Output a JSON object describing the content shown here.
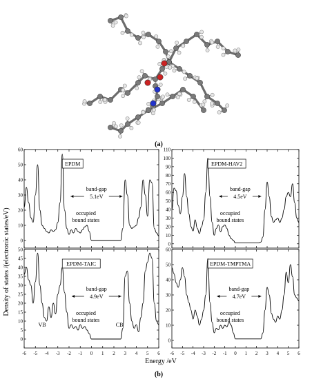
{
  "panel_a": {
    "caption": "(a)"
  },
  "panel_b": {
    "caption": "(b)"
  },
  "shared_axes": {
    "ylabel": "Density of states /(electronic states/eV)",
    "xlabel": "Energy /eV",
    "xticks": [
      -6,
      -5,
      -4,
      -3,
      -2,
      -1,
      0,
      1,
      2,
      3,
      4,
      5,
      6
    ]
  },
  "chart_data": [
    {
      "type": "line",
      "title": "EPDM",
      "xlim": [
        -6,
        6
      ],
      "ylim": [
        -5,
        60
      ],
      "yticks": [
        0,
        10,
        20,
        30,
        40,
        50,
        60
      ],
      "annotations": [
        "band-gap",
        "5.1eV",
        "occupied",
        "bound states"
      ],
      "gap": [
        -2.1,
        3.0
      ],
      "series": [
        {
          "x": [
            -6,
            -5.8,
            -5.6,
            -5.4,
            -5.2,
            -5,
            -4.8,
            -4.6,
            -4.4,
            -4.2,
            -4,
            -3.8,
            -3.6,
            -3.4,
            -3.2,
            -3,
            -2.8,
            -2.6,
            -2.4,
            -2.2,
            -2,
            -1.8,
            -1.6,
            -1.4,
            -1.2,
            -1,
            -0.8,
            -0.6,
            -0.4,
            -0.2,
            0,
            0.2,
            0.4,
            0.6,
            0.8,
            1,
            1.2,
            1.4,
            1.6,
            1.8,
            2,
            2.2,
            2.4,
            2.6,
            2.8,
            3,
            3.2,
            3.4,
            3.6,
            3.8,
            4,
            4.2,
            4.4,
            4.6,
            4.8,
            5,
            5.2,
            5.4,
            5.6,
            5.8,
            6
          ],
          "y": [
            22,
            35,
            25,
            15,
            12,
            30,
            50,
            20,
            10,
            8,
            6,
            5,
            7,
            6,
            7,
            12,
            25,
            57,
            20,
            8,
            4,
            7,
            5,
            8,
            6,
            5,
            7,
            9,
            10,
            6,
            0,
            0,
            0,
            0,
            0,
            0,
            0,
            0,
            0,
            0,
            0,
            0,
            0,
            0,
            8,
            40,
            30,
            10,
            8,
            9,
            10,
            15,
            22,
            40,
            30,
            16,
            40,
            38,
            8,
            5,
            3
          ]
        }
      ]
    },
    {
      "type": "line",
      "title": "EPDM-HAV2",
      "xlim": [
        -6,
        6
      ],
      "ylim": [
        -5,
        110
      ],
      "yticks": [
        0,
        10,
        20,
        30,
        40,
        50,
        60,
        70,
        80,
        90,
        100,
        110
      ],
      "annotations": [
        "band-gap",
        "4.5eV",
        "occupied",
        "bound states"
      ],
      "gap": [
        -1.8,
        2.7
      ],
      "series": [
        {
          "x": [
            -6,
            -5.8,
            -5.6,
            -5.4,
            -5.2,
            -5,
            -4.8,
            -4.6,
            -4.4,
            -4.2,
            -4,
            -3.8,
            -3.6,
            -3.4,
            -3.2,
            -3,
            -2.8,
            -2.6,
            -2.4,
            -2.2,
            -2,
            -1.8,
            -1.6,
            -1.4,
            -1.2,
            -1,
            -0.8,
            -0.6,
            -0.4,
            -0.2,
            0,
            0.2,
            0.4,
            0.6,
            0.8,
            1,
            1.2,
            1.4,
            1.6,
            1.8,
            2,
            2.2,
            2.4,
            2.6,
            2.8,
            3,
            3.2,
            3.4,
            3.6,
            3.8,
            4,
            4.2,
            4.4,
            4.6,
            4.8,
            5,
            5.2,
            5.4,
            5.6,
            5.8,
            6
          ],
          "y": [
            40,
            65,
            62,
            45,
            35,
            55,
            82,
            55,
            35,
            20,
            15,
            28,
            18,
            12,
            20,
            28,
            60,
            100,
            55,
            25,
            10,
            18,
            22,
            14,
            20,
            22,
            18,
            10,
            6,
            4,
            1,
            1,
            1,
            1,
            1,
            1,
            1,
            1,
            1,
            1,
            1,
            1,
            2,
            8,
            40,
            72,
            55,
            32,
            25,
            28,
            30,
            25,
            30,
            40,
            55,
            60,
            55,
            70,
            48,
            30,
            25
          ]
        }
      ]
    },
    {
      "type": "line",
      "title": "EPDM-TAIC",
      "xlim": [
        -6,
        6
      ],
      "ylim": [
        -5,
        50
      ],
      "yticks": [
        0,
        5,
        10,
        15,
        20,
        25,
        30,
        35,
        40,
        45,
        50
      ],
      "annotations": [
        "band-gap",
        "4.9eV",
        "occupied",
        "bound states",
        "VB",
        "CB"
      ],
      "gap": [
        -2.0,
        2.9
      ],
      "series": [
        {
          "x": [
            -6,
            -5.8,
            -5.6,
            -5.4,
            -5.2,
            -5,
            -4.8,
            -4.6,
            -4.4,
            -4.2,
            -4,
            -3.8,
            -3.6,
            -3.4,
            -3.2,
            -3,
            -2.8,
            -2.6,
            -2.4,
            -2.2,
            -2,
            -1.8,
            -1.6,
            -1.4,
            -1.2,
            -1,
            -0.8,
            -0.6,
            -0.4,
            -0.2,
            0,
            0.2,
            0.4,
            0.6,
            0.8,
            1,
            1.2,
            1.4,
            1.6,
            1.8,
            2,
            2.2,
            2.4,
            2.6,
            2.8,
            3,
            3.2,
            3.4,
            3.6,
            3.8,
            4,
            4.2,
            4.4,
            4.6,
            4.8,
            5,
            5.2,
            5.4,
            5.6,
            5.8,
            6
          ],
          "y": [
            36,
            40,
            33,
            30,
            20,
            32,
            48,
            30,
            20,
            12,
            10,
            18,
            12,
            20,
            14,
            25,
            30,
            40,
            26,
            15,
            6,
            8,
            6,
            7,
            5,
            8,
            6,
            7,
            5,
            3,
            0,
            0,
            0,
            0,
            0,
            0,
            0,
            0,
            0,
            0,
            0,
            0,
            0,
            0,
            6,
            35,
            38,
            20,
            10,
            6,
            8,
            4,
            12,
            20,
            38,
            43,
            48,
            45,
            20,
            10,
            8
          ]
        }
      ]
    },
    {
      "type": "line",
      "title": "EPDM-TMPTMA",
      "xlim": [
        -6,
        6
      ],
      "ylim": [
        -5,
        60
      ],
      "yticks": [
        0,
        10,
        20,
        30,
        40,
        50,
        60
      ],
      "annotations": [
        "band-gap",
        "4.7eV",
        "occupied",
        "bound states"
      ],
      "gap": [
        -2.0,
        2.7
      ],
      "series": [
        {
          "x": [
            -6,
            -5.8,
            -5.6,
            -5.4,
            -5.2,
            -5,
            -4.8,
            -4.6,
            -4.4,
            -4.2,
            -4,
            -3.8,
            -3.6,
            -3.4,
            -3.2,
            -3,
            -2.8,
            -2.6,
            -2.4,
            -2.2,
            -2,
            -1.8,
            -1.6,
            -1.4,
            -1.2,
            -1,
            -0.8,
            -0.6,
            -0.4,
            -0.2,
            0,
            0.2,
            0.4,
            0.6,
            0.8,
            1,
            1.2,
            1.4,
            1.6,
            1.8,
            2,
            2.2,
            2.4,
            2.6,
            2.8,
            3,
            3.2,
            3.4,
            3.6,
            3.8,
            4,
            4.2,
            4.4,
            4.6,
            4.8,
            5,
            5.2,
            5.4,
            5.6,
            5.8,
            6
          ],
          "y": [
            48,
            44,
            38,
            35,
            40,
            48,
            42,
            30,
            25,
            20,
            14,
            20,
            16,
            10,
            14,
            20,
            30,
            54,
            25,
            12,
            5,
            8,
            7,
            10,
            8,
            10,
            9,
            12,
            10,
            5,
            1,
            1,
            1,
            1,
            1,
            1,
            1,
            1,
            1,
            1,
            1,
            1,
            1,
            5,
            20,
            35,
            30,
            18,
            14,
            12,
            16,
            14,
            20,
            30,
            45,
            38,
            50,
            42,
            30,
            28,
            26
          ]
        }
      ]
    }
  ]
}
